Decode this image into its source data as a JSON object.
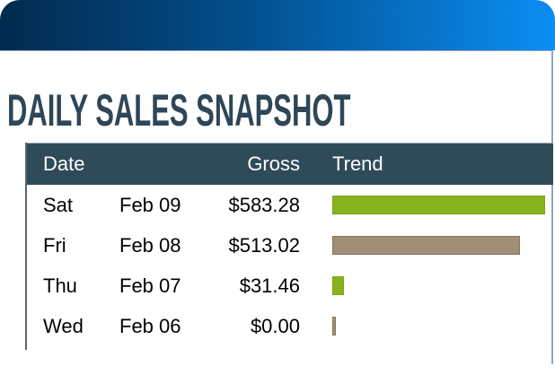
{
  "title": "DAILY SALES SNAPSHOT",
  "colors": {
    "header_gradient_start": "#012a4d",
    "header_gradient_end": "#0a8ef2",
    "table_header": "#2f4b5a",
    "bar_green": "#86b31c",
    "bar_tan": "#a08e76"
  },
  "table": {
    "headers": {
      "date": "Date",
      "gross": "Gross",
      "trend": "Trend"
    },
    "rows": [
      {
        "day": "Sat",
        "date": "Feb 09",
        "gross": "$583.28",
        "trend": 1.0,
        "color": "#86b31c",
        "border": "#7aa511"
      },
      {
        "day": "Fri",
        "date": "Feb 08",
        "gross": "$513.02",
        "trend": 0.88,
        "color": "#a08e76",
        "border": "#857560"
      },
      {
        "day": "Thu",
        "date": "Feb 07",
        "gross": "$31.46",
        "trend": 0.054,
        "color": "#86b31c",
        "border": "#7aa511"
      },
      {
        "day": "Wed",
        "date": "Feb 06",
        "gross": "$0.00",
        "trend": 0.0,
        "color": "#a08e76",
        "border": "#857560"
      }
    ]
  }
}
